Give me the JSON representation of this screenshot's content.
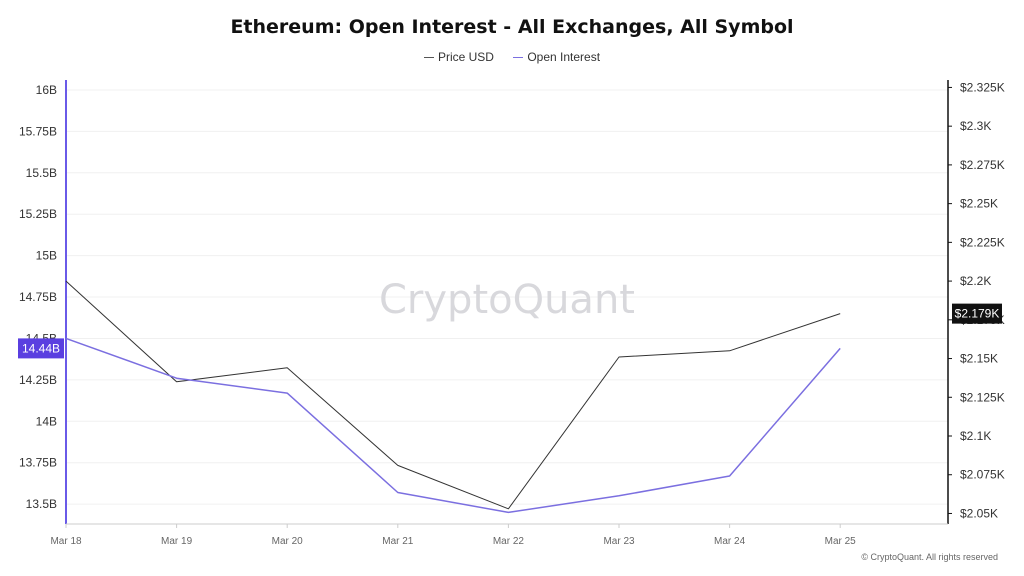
{
  "chart_data": {
    "type": "line",
    "title": "Ethereum: Open Interest - All Exchanges, All Symbol",
    "categories": [
      "Mar 18",
      "Mar 19",
      "Mar 20",
      "Mar 21",
      "Mar 22",
      "Mar 23",
      "Mar 24",
      "Mar 25"
    ],
    "series": [
      {
        "name": "Price USD",
        "axis": "right",
        "color": "#333333",
        "values": [
          2.2,
          2.135,
          2.144,
          2.081,
          2.053,
          2.151,
          2.155,
          2.179
        ]
      },
      {
        "name": "Open Interest",
        "axis": "left",
        "color": "#7b6fe0",
        "values": [
          14.5,
          14.26,
          14.17,
          13.57,
          13.45,
          13.55,
          13.67,
          14.44
        ]
      }
    ],
    "left_axis": {
      "ylim": [
        13.38,
        16.06
      ],
      "ticks": [
        13.5,
        13.75,
        14,
        14.25,
        14.5,
        14.75,
        15,
        15.25,
        15.5,
        15.75,
        16
      ],
      "tick_labels": [
        "13.5B",
        "13.75B",
        "14B",
        "14.25B",
        "14.5B",
        "14.75B",
        "15B",
        "15.25B",
        "15.5B",
        "15.75B",
        "16B"
      ]
    },
    "right_axis": {
      "ylim": [
        2.0432,
        2.3298
      ],
      "ticks": [
        2.05,
        2.075,
        2.1,
        2.125,
        2.15,
        2.175,
        2.2,
        2.225,
        2.25,
        2.275,
        2.3,
        2.325
      ],
      "tick_labels": [
        "$2.05K",
        "$2.075K",
        "$2.1K",
        "$2.125K",
        "$2.15K",
        "$2.175K",
        "$2.2K",
        "$2.225K",
        "$2.25K",
        "$2.275K",
        "$2.3K",
        "$2.325K"
      ]
    },
    "left_marker": {
      "value": 14.44,
      "label": "14.44B",
      "color": "#5a3fe0"
    },
    "right_marker": {
      "value": 2.179,
      "label": "$2.179K",
      "color": "#111111"
    },
    "grid": true,
    "legend_position": "top-center",
    "watermark": "CryptoQuant"
  },
  "legend": {
    "price": "Price USD",
    "oi": "Open Interest"
  },
  "copyright": "© CryptoQuant. All rights reserved"
}
